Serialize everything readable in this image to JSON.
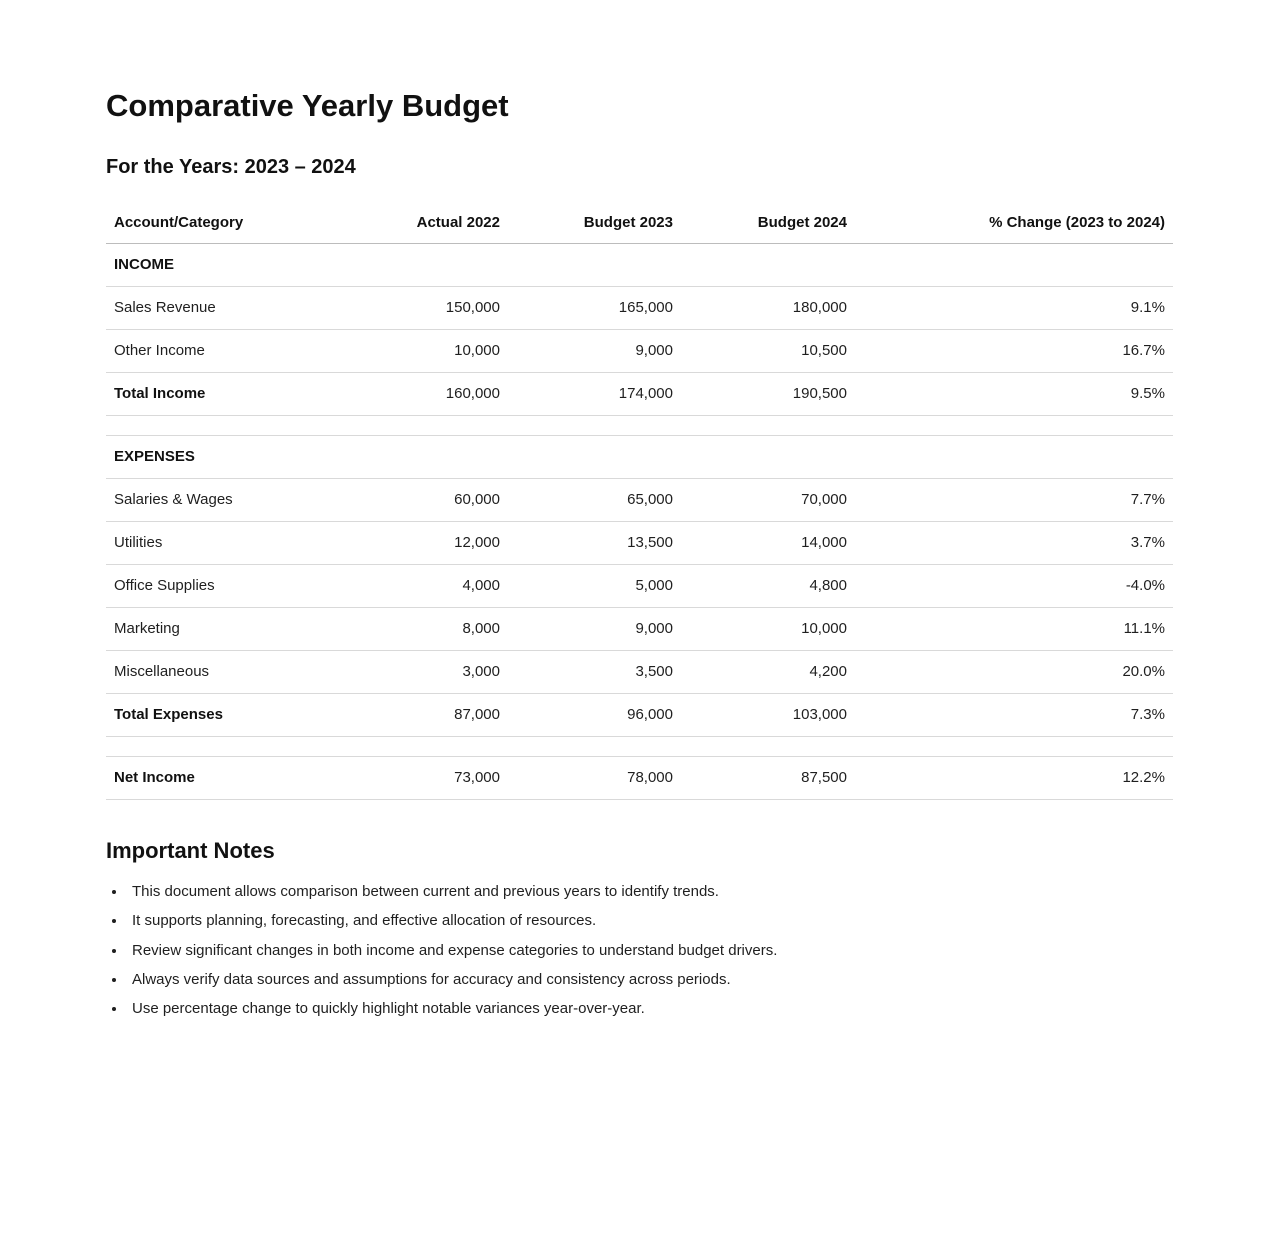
{
  "document": {
    "title": "Comparative Yearly Budget",
    "subtitle": "For the Years: 2023 – 2024"
  },
  "table": {
    "columns": [
      "Account/Category",
      "Actual 2022",
      "Budget 2023",
      "Budget 2024",
      "% Change (2023 to 2024)"
    ],
    "rows": [
      {
        "type": "section",
        "label": "INCOME",
        "values": [
          "",
          "",
          "",
          ""
        ]
      },
      {
        "type": "data",
        "label": "Sales Revenue",
        "values": [
          "150,000",
          "165,000",
          "180,000",
          "9.1%"
        ]
      },
      {
        "type": "data",
        "label": "Other Income",
        "values": [
          "10,000",
          "9,000",
          "10,500",
          "16.7%"
        ]
      },
      {
        "type": "total",
        "label": "Total Income",
        "values": [
          "160,000",
          "174,000",
          "190,500",
          "9.5%"
        ]
      },
      {
        "type": "spacer"
      },
      {
        "type": "section",
        "label": "EXPENSES",
        "values": [
          "",
          "",
          "",
          ""
        ]
      },
      {
        "type": "data",
        "label": "Salaries & Wages",
        "values": [
          "60,000",
          "65,000",
          "70,000",
          "7.7%"
        ]
      },
      {
        "type": "data",
        "label": "Utilities",
        "values": [
          "12,000",
          "13,500",
          "14,000",
          "3.7%"
        ]
      },
      {
        "type": "data",
        "label": "Office Supplies",
        "values": [
          "4,000",
          "5,000",
          "4,800",
          "-4.0%"
        ]
      },
      {
        "type": "data",
        "label": "Marketing",
        "values": [
          "8,000",
          "9,000",
          "10,000",
          "11.1%"
        ]
      },
      {
        "type": "data",
        "label": "Miscellaneous",
        "values": [
          "3,000",
          "3,500",
          "4,200",
          "20.0%"
        ]
      },
      {
        "type": "total",
        "label": "Total Expenses",
        "values": [
          "87,000",
          "96,000",
          "103,000",
          "7.3%"
        ]
      },
      {
        "type": "spacer"
      },
      {
        "type": "total",
        "label": "Net Income",
        "values": [
          "73,000",
          "78,000",
          "87,500",
          "12.2%"
        ]
      }
    ]
  },
  "notes": {
    "title": "Important Notes",
    "items": [
      "This document allows comparison between current and previous years to identify trends.",
      "It supports planning, forecasting, and effective allocation of resources.",
      "Review significant changes in both income and expense categories to understand budget drivers.",
      "Always verify data sources and assumptions for accuracy and consistency across periods.",
      "Use percentage change to quickly highlight notable variances year-over-year."
    ]
  }
}
